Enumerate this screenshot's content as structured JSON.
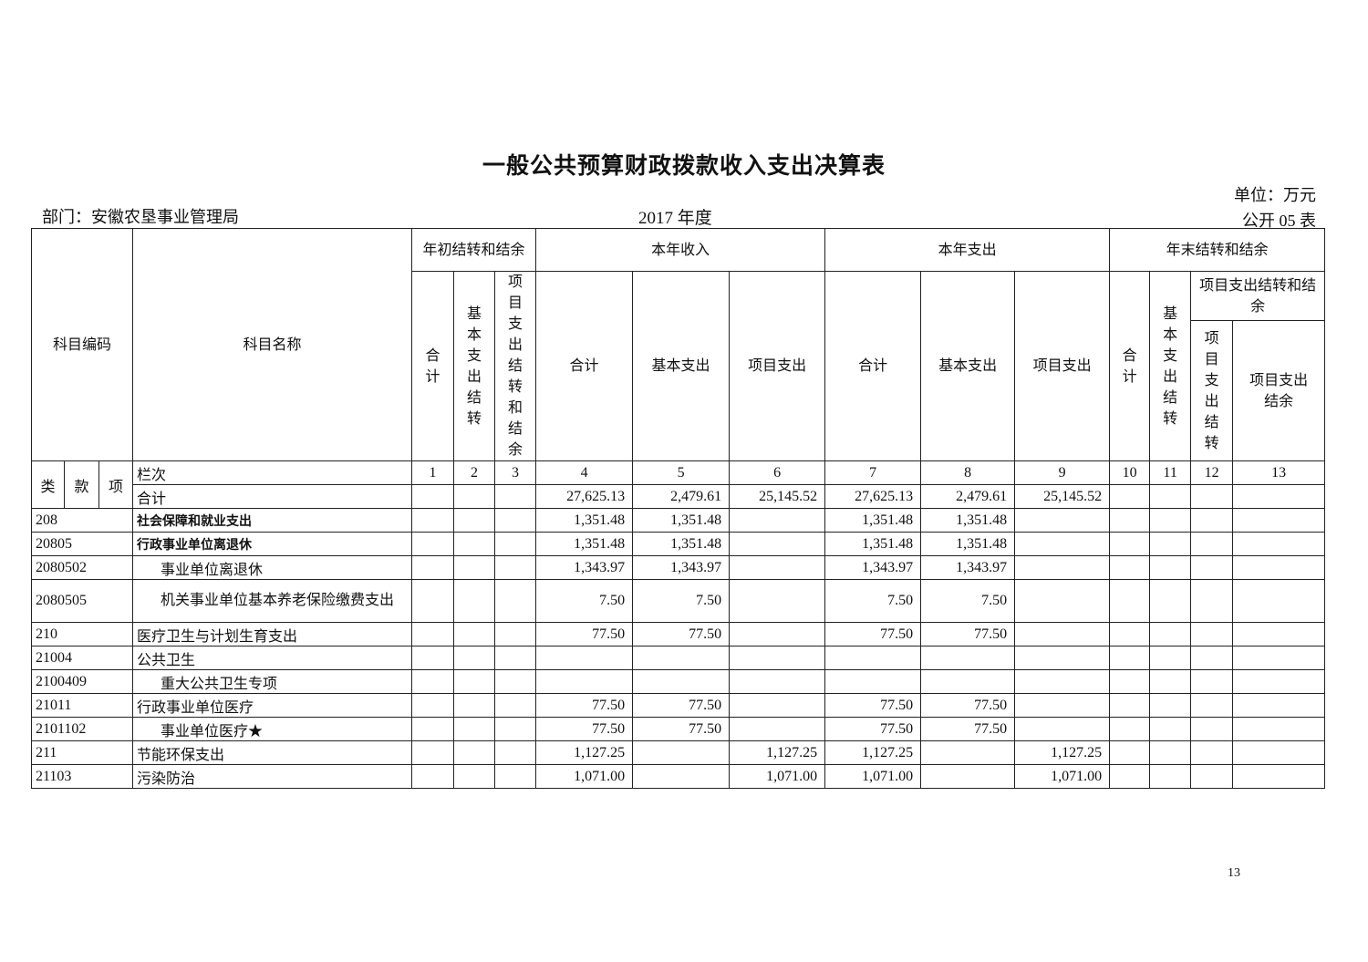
{
  "title": "一般公共预算财政拨款收入支出决算表",
  "unit": "单位：万元",
  "department": "部门：安徽农垦事业管理局",
  "year": "2017 年度",
  "table_no": "公开 05 表",
  "page_number": "13",
  "header": {
    "code": "科目编码",
    "name": "科目名称",
    "opening": "年初结转和结余",
    "income": "本年收入",
    "expense": "本年支出",
    "closing": "年末结转和结余",
    "total": "合计",
    "basic_carry": "基本支出结转",
    "project_carry_balance": "项目支出结转和结余",
    "basic": "基本支出",
    "project": "项目支出",
    "project_carry": "项目支出结转",
    "project_balance": "项目支出结余",
    "lei": "类",
    "kuan": "款",
    "xiang": "项",
    "column_index_label": "栏次",
    "column_indices": [
      "1",
      "2",
      "3",
      "4",
      "5",
      "6",
      "7",
      "8",
      "9",
      "10",
      "11",
      "12",
      "13"
    ],
    "total_row_label": "合计",
    "total_values": [
      "",
      "",
      "",
      "27,625.13",
      "2,479.61",
      "25,145.52",
      "27,625.13",
      "2,479.61",
      "25,145.52",
      "",
      "",
      "",
      ""
    ]
  },
  "rows": [
    {
      "code": "208",
      "name": "社会保障和就业支出",
      "values": [
        "",
        "",
        "",
        "1,351.48",
        "1,351.48",
        "",
        "1,351.48",
        "1,351.48",
        "",
        "",
        "",
        "",
        ""
      ]
    },
    {
      "code": "20805",
      "name": "行政事业单位离退休",
      "values": [
        "",
        "",
        "",
        "1,351.48",
        "1,351.48",
        "",
        "1,351.48",
        "1,351.48",
        "",
        "",
        "",
        "",
        ""
      ]
    },
    {
      "code": "2080502",
      "name": "事业单位离退休",
      "values": [
        "",
        "",
        "",
        "1,343.97",
        "1,343.97",
        "",
        "1,343.97",
        "1,343.97",
        "",
        "",
        "",
        "",
        ""
      ]
    },
    {
      "code": "2080505",
      "name": "机关事业单位基本养老保险缴费支出",
      "values": [
        "",
        "",
        "",
        "7.50",
        "7.50",
        "",
        "7.50",
        "7.50",
        "",
        "",
        "",
        "",
        ""
      ]
    },
    {
      "code": "210",
      "name": "医疗卫生与计划生育支出",
      "values": [
        "",
        "",
        "",
        "77.50",
        "77.50",
        "",
        "77.50",
        "77.50",
        "",
        "",
        "",
        "",
        ""
      ]
    },
    {
      "code": "21004",
      "name": "公共卫生",
      "values": [
        "",
        "",
        "",
        "",
        "",
        "",
        "",
        "",
        "",
        "",
        "",
        "",
        ""
      ]
    },
    {
      "code": "2100409",
      "name": "重大公共卫生专项",
      "values": [
        "",
        "",
        "",
        "",
        "",
        "",
        "",
        "",
        "",
        "",
        "",
        "",
        ""
      ]
    },
    {
      "code": "21011",
      "name": "行政事业单位医疗",
      "values": [
        "",
        "",
        "",
        "77.50",
        "77.50",
        "",
        "77.50",
        "77.50",
        "",
        "",
        "",
        "",
        ""
      ]
    },
    {
      "code": "2101102",
      "name": "事业单位医疗★",
      "values": [
        "",
        "",
        "",
        "77.50",
        "77.50",
        "",
        "77.50",
        "77.50",
        "",
        "",
        "",
        "",
        ""
      ]
    },
    {
      "code": "211",
      "name": "节能环保支出",
      "values": [
        "",
        "",
        "",
        "1,127.25",
        "",
        "1,127.25",
        "1,127.25",
        "",
        "1,127.25",
        "",
        "",
        "",
        ""
      ]
    },
    {
      "code": "21103",
      "name": "污染防治",
      "values": [
        "",
        "",
        "",
        "1,071.00",
        "",
        "1,071.00",
        "1,071.00",
        "",
        "1,071.00",
        "",
        "",
        "",
        ""
      ]
    }
  ]
}
